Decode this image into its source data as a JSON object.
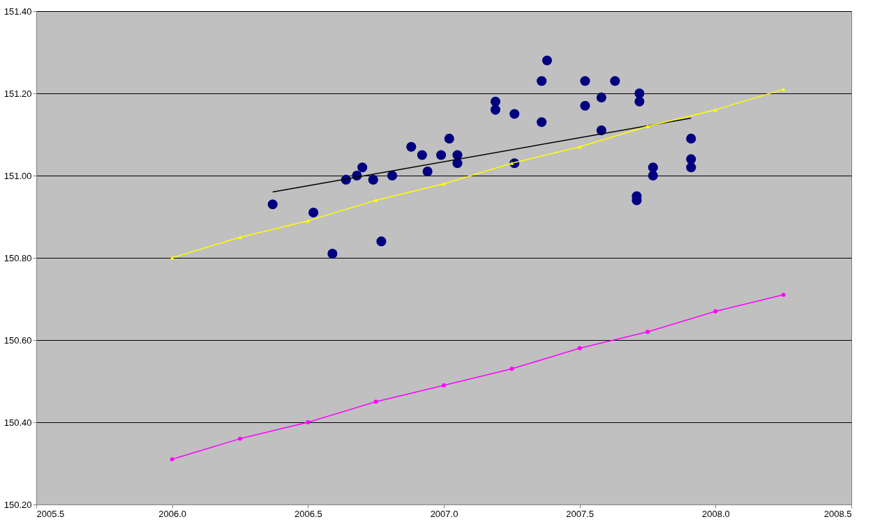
{
  "chart_data": {
    "type": "scatter",
    "xlim": [
      2005.5,
      2008.5
    ],
    "ylim": [
      150.2,
      151.4
    ],
    "xticks": [
      {
        "value": 2005.5,
        "label": "2005.5"
      },
      {
        "value": 2006,
        "label": "2006.0"
      },
      {
        "value": 2006.5,
        "label": "2006.5"
      },
      {
        "value": 2007,
        "label": "2007.0"
      },
      {
        "value": 2007.5,
        "label": "2007.5"
      },
      {
        "value": 2008,
        "label": "2008.0"
      },
      {
        "value": 2008.5,
        "label": "2008.5"
      }
    ],
    "yticks": [
      {
        "value": 150.2,
        "label": "150.20"
      },
      {
        "value": 150.4,
        "label": "150.40"
      },
      {
        "value": 150.6,
        "label": "150.60"
      },
      {
        "value": 150.8,
        "label": "150.80"
      },
      {
        "value": 151,
        "label": "151.00"
      },
      {
        "value": 151.2,
        "label": "151.20"
      },
      {
        "value": 151.4,
        "label": "151.40"
      }
    ],
    "grid": "y",
    "legend": false,
    "series": [
      {
        "marker": "circle",
        "color": "#000080",
        "x": [
          2006.37,
          2006.52,
          2006.59,
          2006.64,
          2006.68,
          2006.7,
          2006.74,
          2006.77,
          2006.81,
          2006.88,
          2006.92,
          2006.94,
          2006.99,
          2007.02,
          2007.05,
          2007.05,
          2007.19,
          2007.19,
          2007.26,
          2007.26,
          2007.36,
          2007.36,
          2007.38,
          2007.52,
          2007.52,
          2007.58,
          2007.58,
          2007.63,
          2007.72,
          2007.72,
          2007.71,
          2007.71,
          2007.77,
          2007.77,
          2007.91,
          2007.91,
          2007.91
        ],
        "values": [
          150.93,
          150.91,
          150.81,
          150.99,
          151.0,
          151.02,
          150.99,
          150.84,
          151.0,
          151.07,
          151.05,
          151.01,
          151.05,
          151.09,
          151.05,
          151.03,
          151.18,
          151.16,
          151.15,
          151.03,
          151.23,
          151.13,
          151.28,
          151.23,
          151.17,
          151.19,
          151.11,
          151.23,
          151.2,
          151.18,
          150.95,
          150.94,
          151.02,
          151.0,
          151.09,
          151.04,
          151.02
        ]
      },
      {
        "type": "line",
        "marker": "none",
        "color": "#000000",
        "x": [
          2006.37,
          2007.91
        ],
        "values": [
          150.96,
          151.14
        ]
      },
      {
        "type": "line",
        "marker": "triangle",
        "color": "#ffff00",
        "x": [
          2006.0,
          2006.25,
          2006.5,
          2006.75,
          2007.0,
          2007.25,
          2007.5,
          2007.75,
          2008.0,
          2008.25
        ],
        "values": [
          150.8,
          150.85,
          150.89,
          150.94,
          150.98,
          151.03,
          151.07,
          151.12,
          151.16,
          151.21
        ]
      },
      {
        "type": "line",
        "marker": "circle",
        "color": "#ff00ff",
        "x": [
          2006.0,
          2006.25,
          2006.5,
          2006.75,
          2007.0,
          2007.25,
          2007.5,
          2007.75,
          2008.0,
          2008.25
        ],
        "values": [
          150.31,
          150.36,
          150.4,
          150.45,
          150.49,
          150.53,
          150.58,
          150.62,
          150.67,
          150.71
        ]
      }
    ]
  }
}
